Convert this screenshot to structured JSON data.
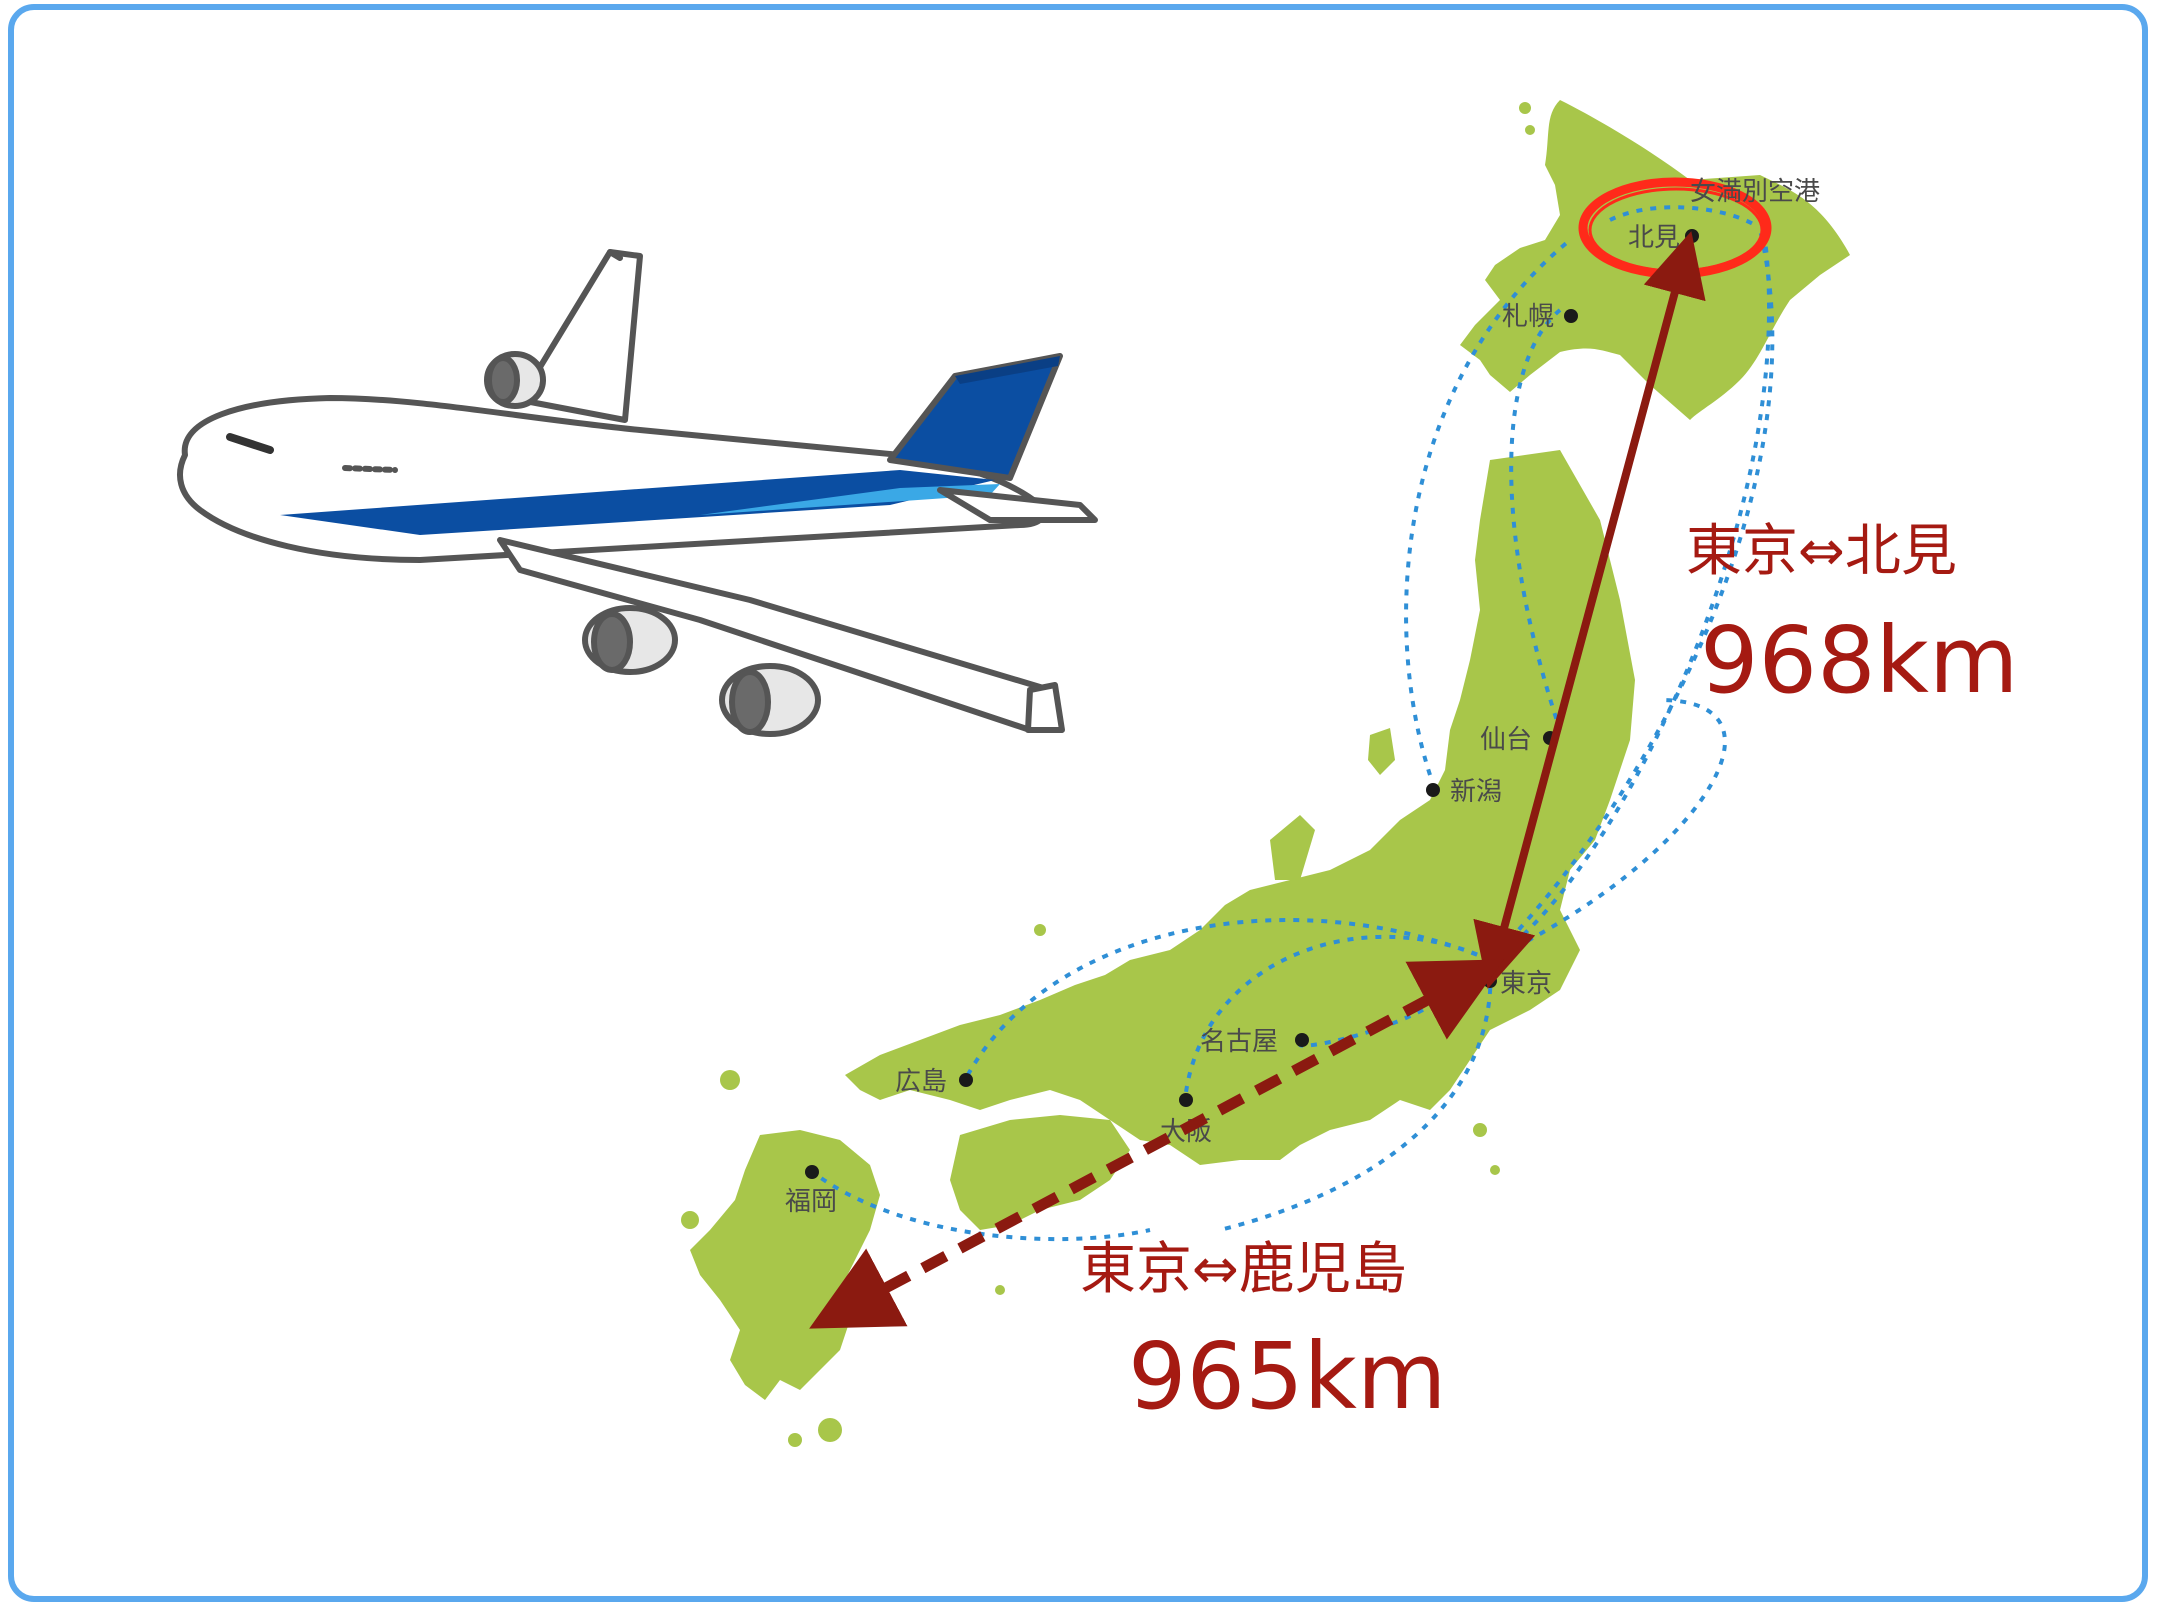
{
  "cities": {
    "memanbetsu": "女満別空港",
    "kitami": "北見",
    "sapporo": "札幌",
    "sendai": "仙台",
    "niigata": "新潟",
    "tokyo": "東京",
    "nagoya": "名古屋",
    "osaka": "大阪",
    "hiroshima": "広島",
    "fukuoka": "福岡"
  },
  "routes": {
    "tokyo_kitami": {
      "label": "東京⇔北見",
      "distance": "968km"
    },
    "tokyo_kagoshima": {
      "label": "東京⇔鹿児島",
      "distance": "965km"
    }
  },
  "colors": {
    "frame": "#5aa8ee",
    "land": "#a8c64a",
    "route_arrow": "#8b1a10",
    "route_text": "#a51a12",
    "flight_path": "#2f8fd6",
    "highlight": "#ff2a1a",
    "plane_tail": "#0b4ea2"
  }
}
